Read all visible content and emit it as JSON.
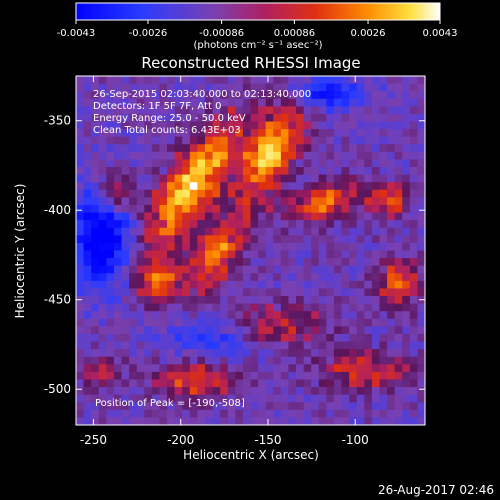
{
  "chart_data": {
    "type": "heatmap",
    "title": "Reconstructed RHESSI Image",
    "xlabel": "Heliocentric X (arcsec)",
    "ylabel": "Heliocentric Y (arcsec)",
    "xlim": [
      -260,
      -60
    ],
    "ylim": [
      -520,
      -325
    ],
    "x_ticks": [
      -250,
      -200,
      -150,
      -100
    ],
    "y_ticks": [
      -350,
      -400,
      -450,
      -500
    ],
    "x_tick_labels": [
      "-250",
      "-200",
      "-150",
      "-100"
    ],
    "y_tick_labels": [
      "-350",
      "-400",
      "-450",
      "-500"
    ],
    "colorbar": {
      "min": -0.0043,
      "max": 0.0043,
      "ticks": [
        -0.0043,
        -0.0026,
        -0.00086,
        0.00086,
        0.0026,
        0.0043
      ],
      "tick_labels": [
        "-0.0043",
        "-0.0026",
        "-0.00086",
        "0.00086",
        "0.0026",
        "0.0043"
      ],
      "units": "(photons cm⁻² s⁻¹ asec⁻²)",
      "colormap": "blue-purple-red-yellow-white"
    },
    "annotations": [
      "26-Sep-2015 02:03:40.000 to 02:13:40.000",
      "Detectors: 1F 5F 7F, Att 0",
      "Energy Range: 25.0 - 50.0 keV",
      "Clean   Total counts: 6.43E+03"
    ],
    "peak_label": "Position of Peak = [-190,-508]",
    "peak_position": [
      -190,
      -508
    ],
    "grid": false,
    "sources": [
      {
        "x": -193,
        "y": -385,
        "sx": 10,
        "sy": 30,
        "angle": -35,
        "amp": 1.0
      },
      {
        "x": -148,
        "y": -368,
        "sx": 9,
        "sy": 20,
        "angle": -30,
        "amp": 0.95
      },
      {
        "x": -180,
        "y": -425,
        "sx": 9,
        "sy": 18,
        "angle": -35,
        "amp": 0.7
      },
      {
        "x": -238,
        "y": -390,
        "sx": 7,
        "sy": 8,
        "angle": 0,
        "amp": 0.65
      },
      {
        "x": -213,
        "y": -440,
        "sx": 8,
        "sy": 9,
        "angle": 0,
        "amp": 0.65
      },
      {
        "x": -117,
        "y": -395,
        "sx": 16,
        "sy": 7,
        "angle": 15,
        "amp": 0.7
      },
      {
        "x": -80,
        "y": -395,
        "sx": 8,
        "sy": 6,
        "angle": 0,
        "amp": 0.6
      },
      {
        "x": -75,
        "y": -440,
        "sx": 9,
        "sy": 10,
        "angle": 0,
        "amp": 0.6
      },
      {
        "x": -150,
        "y": -465,
        "sx": 22,
        "sy": 8,
        "angle": 0,
        "amp": 0.55
      },
      {
        "x": -192,
        "y": -495,
        "sx": 15,
        "sy": 7,
        "angle": 0,
        "amp": 0.6
      },
      {
        "x": -245,
        "y": -490,
        "sx": 8,
        "sy": 6,
        "angle": 0,
        "amp": 0.4
      },
      {
        "x": -95,
        "y": -490,
        "sx": 18,
        "sy": 7,
        "angle": 0,
        "amp": 0.5
      }
    ],
    "minima": [
      {
        "x": -245,
        "y": -415,
        "sx": 12,
        "sy": 20,
        "amp": 0.8
      },
      {
        "x": -115,
        "y": -335,
        "sx": 14,
        "sy": 6,
        "amp": 0.6
      },
      {
        "x": -180,
        "y": -470,
        "sx": 20,
        "sy": 8,
        "amp": 0.5
      }
    ]
  },
  "footer": {
    "timestamp": "26-Aug-2017 02:46"
  }
}
